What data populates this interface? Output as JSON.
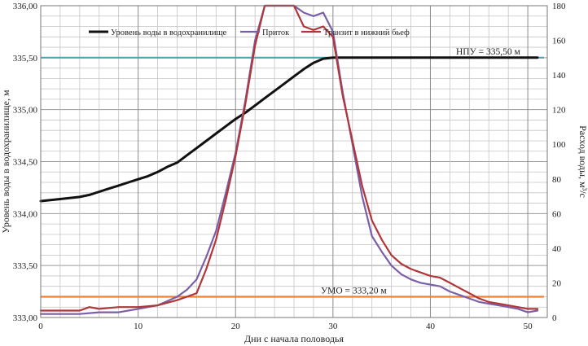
{
  "chart_data": {
    "type": "line",
    "xlabel": "Дни с начала половодья",
    "ylabel_left": "Уровень воды в водохранилище, м",
    "ylabel_right": "Расход воды, м³/с",
    "xlim": [
      0,
      52
    ],
    "xticks": [
      0,
      10,
      20,
      30,
      40,
      50
    ],
    "ylim_left": [
      333.0,
      336.0
    ],
    "yticks_left": [
      "333,00",
      "333,50",
      "334,00",
      "334,50",
      "335,00",
      "335,50",
      "336,00"
    ],
    "ylim_right": [
      0,
      180
    ],
    "yticks_right": [
      "0",
      "20",
      "40",
      "60",
      "80",
      "100",
      "120",
      "140",
      "160",
      "180"
    ],
    "grid": true,
    "legend_position": "top",
    "series": [
      {
        "name": "Уровень воды в водохранилище",
        "axis": "left",
        "color": "#111111",
        "x": [
          0,
          2,
          4,
          5,
          6,
          7,
          8,
          9,
          10,
          11,
          12,
          13,
          14,
          15,
          16,
          17,
          18,
          19,
          20,
          21,
          22,
          23,
          24,
          25,
          26,
          27,
          28,
          29,
          30,
          31,
          35,
          40,
          45,
          50,
          51
        ],
        "y": [
          334.12,
          334.14,
          334.16,
          334.18,
          334.21,
          334.24,
          334.27,
          334.3,
          334.33,
          334.36,
          334.4,
          334.45,
          334.49,
          334.56,
          334.63,
          334.7,
          334.77,
          334.84,
          334.91,
          334.97,
          335.04,
          335.11,
          335.18,
          335.25,
          335.32,
          335.39,
          335.45,
          335.49,
          335.5,
          335.5,
          335.5,
          335.5,
          335.5,
          335.5,
          335.5
        ]
      },
      {
        "name": "Приток",
        "axis": "right",
        "color": "#7a5fa8",
        "x": [
          0,
          2,
          4,
          6,
          8,
          10,
          12,
          14,
          15,
          16,
          17,
          18,
          19,
          20,
          21,
          22,
          23,
          24,
          25,
          26,
          27,
          28,
          29,
          30,
          31,
          32,
          33,
          34,
          35,
          36,
          37,
          38,
          39,
          40,
          41,
          42,
          43,
          44,
          45,
          46,
          47,
          48,
          49,
          50,
          51
        ],
        "y": [
          2,
          2,
          2,
          3,
          3,
          5,
          7,
          12,
          16,
          22,
          35,
          50,
          72,
          95,
          125,
          160,
          190,
          197,
          200,
          188,
          176,
          174,
          176,
          165,
          130,
          100,
          70,
          47,
          38,
          30,
          25,
          22,
          20,
          19,
          18,
          15,
          13,
          11,
          9,
          8,
          7,
          6,
          5,
          3,
          4
        ]
      },
      {
        "name": "Транзит в нижний бьеф",
        "axis": "right",
        "color": "#b1363a",
        "x": [
          0,
          2,
          4,
          5,
          6,
          8,
          10,
          12,
          14,
          15,
          16,
          17,
          18,
          19,
          20,
          21,
          22,
          23,
          24,
          25,
          26,
          27,
          28,
          29,
          30,
          31,
          32,
          33,
          34,
          35,
          36,
          37,
          38,
          39,
          40,
          41,
          42,
          43,
          44,
          45,
          46,
          47,
          48,
          49,
          50,
          51
        ],
        "y": [
          4,
          4,
          4,
          6,
          5,
          6,
          6,
          7,
          10,
          12,
          14,
          28,
          45,
          68,
          93,
          123,
          157,
          180,
          188,
          190,
          180,
          168,
          166,
          168,
          162,
          128,
          102,
          76,
          56,
          45,
          36,
          31,
          28,
          26,
          24,
          23,
          20,
          17,
          14,
          11,
          9,
          8,
          7,
          6,
          5,
          5
        ]
      }
    ],
    "reference_lines": [
      {
        "label": "НПУ = 335,50 м",
        "axis": "left",
        "value": 335.5,
        "color": "#4da6b5"
      },
      {
        "label": "УМО = 333,20 м",
        "axis": "left",
        "value": 333.2,
        "color": "#e8833a"
      }
    ]
  }
}
